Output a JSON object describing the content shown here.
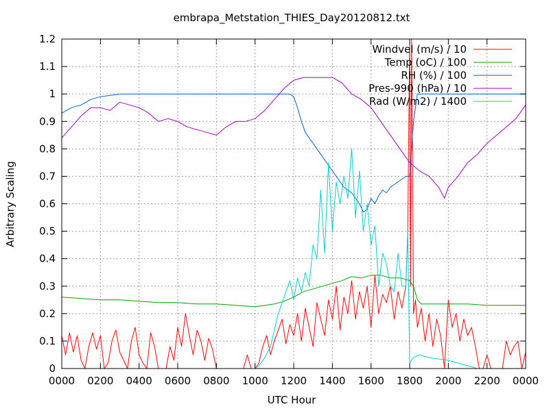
{
  "chart_data": {
    "type": "line",
    "title": "embrapa_Metstation_THIES_Day20120812.txt",
    "xlabel": "UTC Hour",
    "ylabel": "Arbitrary Scaling",
    "xlim": [
      0,
      24
    ],
    "ylim": [
      0,
      1.2
    ],
    "grid": true,
    "legend_position": "top-right",
    "x_ticks": [
      {
        "value": 0,
        "label": "0000"
      },
      {
        "value": 2,
        "label": "0200"
      },
      {
        "value": 4,
        "label": "0400"
      },
      {
        "value": 6,
        "label": "0600"
      },
      {
        "value": 8,
        "label": "0800"
      },
      {
        "value": 10,
        "label": "1000"
      },
      {
        "value": 12,
        "label": "1200"
      },
      {
        "value": 14,
        "label": "1400"
      },
      {
        "value": 16,
        "label": "1600"
      },
      {
        "value": 18,
        "label": "1800"
      },
      {
        "value": 20,
        "label": "2000"
      },
      {
        "value": 22,
        "label": "2200"
      },
      {
        "value": 24,
        "label": "0000"
      }
    ],
    "y_ticks": [
      {
        "value": 0,
        "label": "0"
      },
      {
        "value": 0.1,
        "label": "0.1"
      },
      {
        "value": 0.2,
        "label": "0.2"
      },
      {
        "value": 0.3,
        "label": "0.3"
      },
      {
        "value": 0.4,
        "label": "0.4"
      },
      {
        "value": 0.5,
        "label": "0.5"
      },
      {
        "value": 0.6,
        "label": "0.6"
      },
      {
        "value": 0.7,
        "label": "0.7"
      },
      {
        "value": 0.8,
        "label": "0.8"
      },
      {
        "value": 0.9,
        "label": "0.9"
      },
      {
        "value": 1.0,
        "label": "1"
      },
      {
        "value": 1.1,
        "label": "1.1"
      },
      {
        "value": 1.2,
        "label": "1.2"
      }
    ],
    "series": [
      {
        "name": "Windvel (m/s) / 10",
        "color": "#ff0000",
        "x": [
          0,
          0.2,
          0.4,
          0.6,
          0.8,
          1.0,
          1.2,
          1.4,
          1.6,
          1.8,
          2.0,
          2.2,
          2.4,
          2.6,
          2.8,
          3.0,
          3.2,
          3.4,
          3.6,
          3.8,
          4.0,
          4.2,
          4.4,
          4.6,
          4.8,
          5.0,
          5.2,
          5.4,
          5.6,
          5.8,
          6.0,
          6.2,
          6.4,
          6.6,
          6.8,
          7.0,
          7.2,
          7.4,
          7.6,
          7.8,
          8.0,
          9.4,
          9.6,
          9.8,
          10.0,
          10.2,
          10.4,
          10.6,
          10.8,
          11.0,
          11.2,
          11.4,
          11.6,
          11.8,
          12.0,
          12.2,
          12.4,
          12.6,
          12.8,
          13.0,
          13.2,
          13.4,
          13.6,
          13.8,
          14.0,
          14.2,
          14.4,
          14.6,
          14.8,
          15.0,
          15.2,
          15.4,
          15.6,
          15.8,
          16.0,
          16.2,
          16.4,
          16.6,
          16.8,
          17.0,
          17.2,
          17.4,
          17.6,
          17.8,
          17.9,
          18.0,
          18.05,
          18.1,
          18.15,
          18.2,
          18.3,
          18.4,
          18.6,
          18.8,
          19.0,
          19.2,
          19.4,
          19.6,
          19.8,
          20.0,
          20.2,
          20.4,
          20.6,
          20.8,
          21.0,
          21.2,
          21.4,
          21.6,
          21.8,
          22.0,
          22.2,
          22.4,
          22.6,
          22.8,
          23.0,
          23.2,
          23.4,
          23.6,
          23.8,
          24.0
        ],
        "y": [
          0.12,
          0.05,
          0.13,
          0.06,
          0.12,
          0.03,
          0.0,
          0.08,
          0.13,
          0.07,
          0.12,
          0.0,
          0.02,
          0.1,
          0.14,
          0.06,
          0.03,
          0.0,
          0.1,
          0.15,
          0.05,
          0.02,
          0.0,
          0.13,
          0.08,
          0.0,
          0.0,
          0.0,
          0.08,
          0.03,
          0.15,
          0.08,
          0.2,
          0.12,
          0.05,
          0.14,
          0.1,
          0.03,
          0.11,
          0.07,
          0.0,
          0.0,
          0.05,
          0.0,
          0.0,
          0.02,
          0.08,
          0.12,
          0.05,
          0.1,
          0.14,
          0.18,
          0.09,
          0.16,
          0.12,
          0.2,
          0.1,
          0.22,
          0.15,
          0.08,
          0.24,
          0.18,
          0.12,
          0.25,
          0.18,
          0.3,
          0.14,
          0.26,
          0.2,
          0.32,
          0.18,
          0.28,
          0.22,
          0.3,
          0.15,
          0.34,
          0.2,
          0.27,
          0.24,
          0.3,
          0.18,
          0.28,
          0.22,
          0.3,
          0.5,
          1.2,
          0.3,
          1.2,
          0.8,
          0.2,
          0.25,
          0.15,
          0.22,
          0.1,
          0.2,
          0.08,
          0.18,
          0.12,
          0.0,
          0.25,
          0.15,
          0.2,
          0.1,
          0.18,
          0.12,
          0.15,
          0.08,
          0.0,
          0.0,
          0.05,
          0.0,
          0.0,
          0.0,
          0.0,
          0.1,
          0.05,
          0.08,
          0.1,
          0.0,
          0.06
        ]
      },
      {
        "name": "Temp (oC) / 100",
        "color": "#00a000",
        "x": [
          0,
          1,
          2,
          3,
          4,
          5,
          6,
          7,
          8,
          9,
          10,
          11,
          11.5,
          12,
          12.5,
          13,
          13.5,
          14,
          14.5,
          15,
          15.5,
          16,
          16.5,
          17,
          17.5,
          18,
          18.2,
          18.4,
          18.6,
          19,
          20,
          21,
          22,
          23,
          24
        ],
        "y": [
          0.26,
          0.255,
          0.25,
          0.25,
          0.245,
          0.24,
          0.24,
          0.235,
          0.235,
          0.23,
          0.225,
          0.235,
          0.245,
          0.26,
          0.28,
          0.29,
          0.3,
          0.31,
          0.32,
          0.335,
          0.33,
          0.34,
          0.34,
          0.33,
          0.33,
          0.32,
          0.3,
          0.25,
          0.235,
          0.235,
          0.235,
          0.235,
          0.23,
          0.23,
          0.23
        ]
      },
      {
        "name": "RH (%) / 100",
        "color": "#0060d0",
        "x": [
          0,
          0.5,
          1,
          1.5,
          2,
          2.5,
          3,
          4,
          5,
          6,
          7,
          8,
          9,
          10,
          11,
          11.8,
          12,
          12.2,
          12.4,
          12.6,
          12.8,
          13,
          13.2,
          13.4,
          13.6,
          13.8,
          14,
          14.2,
          14.4,
          14.6,
          14.8,
          15,
          15.2,
          15.4,
          15.6,
          15.8,
          16,
          16.2,
          16.4,
          16.6,
          16.8,
          17,
          17.2,
          17.4,
          17.6,
          17.8,
          18,
          18.2,
          18.4,
          18.6,
          19,
          20,
          21,
          22,
          23,
          24
        ],
        "y": [
          0.93,
          0.95,
          0.96,
          0.98,
          0.99,
          0.995,
          1.0,
          1.0,
          1.0,
          1.0,
          1.0,
          1.0,
          1.0,
          1.0,
          1.0,
          1.0,
          0.99,
          0.95,
          0.9,
          0.86,
          0.84,
          0.82,
          0.8,
          0.78,
          0.76,
          0.74,
          0.72,
          0.7,
          0.68,
          0.66,
          0.65,
          0.64,
          0.62,
          0.6,
          0.57,
          0.58,
          0.62,
          0.6,
          0.63,
          0.65,
          0.64,
          0.66,
          0.67,
          0.68,
          0.69,
          0.7,
          0.7,
          0.9,
          1.0,
          1.0,
          1.0,
          1.0,
          1.0,
          1.0,
          1.0,
          1.0
        ]
      },
      {
        "name": "Pres-990 (hPa) / 10",
        "color": "#a000c0",
        "x": [
          0,
          0.5,
          1,
          1.5,
          2,
          2.5,
          3,
          3.5,
          4,
          4.5,
          5,
          5.5,
          6,
          6.5,
          7,
          7.5,
          8,
          8.5,
          9,
          9.5,
          10,
          10.5,
          11,
          11.5,
          12,
          12.5,
          13,
          13.5,
          14,
          14.5,
          15,
          15.5,
          16,
          16.5,
          17,
          17.5,
          18,
          18.5,
          19,
          19.5,
          19.8,
          20,
          20.5,
          21,
          21.5,
          22,
          22.5,
          23,
          23.5,
          24
        ],
        "y": [
          0.84,
          0.88,
          0.92,
          0.95,
          0.95,
          0.94,
          0.97,
          0.96,
          0.95,
          0.93,
          0.9,
          0.91,
          0.9,
          0.88,
          0.87,
          0.86,
          0.85,
          0.88,
          0.9,
          0.9,
          0.91,
          0.94,
          0.98,
          1.02,
          1.05,
          1.06,
          1.06,
          1.06,
          1.06,
          1.04,
          1.0,
          0.98,
          0.95,
          0.9,
          0.85,
          0.8,
          0.75,
          0.72,
          0.7,
          0.66,
          0.62,
          0.66,
          0.7,
          0.75,
          0.78,
          0.82,
          0.85,
          0.88,
          0.91,
          0.96
        ]
      },
      {
        "name": "Rad (W/m2) / 1400",
        "color": "#00d0d0",
        "x": [
          0,
          10,
          10.2,
          10.5,
          10.8,
          11.0,
          11.2,
          11.4,
          11.6,
          11.8,
          12.0,
          12.2,
          12.4,
          12.6,
          12.8,
          13.0,
          13.2,
          13.4,
          13.6,
          13.8,
          14.0,
          14.2,
          14.4,
          14.6,
          14.8,
          15.0,
          15.2,
          15.4,
          15.6,
          15.8,
          16.0,
          16.2,
          16.4,
          16.6,
          16.8,
          17.0,
          17.2,
          17.4,
          17.6,
          17.8,
          17.9,
          18.0,
          18.2,
          18.5,
          19.0,
          19.5,
          20.0,
          20.5,
          21.0,
          21.5,
          22.0,
          24.0
        ],
        "y": [
          0.0,
          0.0,
          0.01,
          0.04,
          0.08,
          0.14,
          0.2,
          0.24,
          0.28,
          0.32,
          0.25,
          0.33,
          0.28,
          0.35,
          0.3,
          0.45,
          0.4,
          0.65,
          0.42,
          0.75,
          0.5,
          0.68,
          0.6,
          0.7,
          0.62,
          0.8,
          0.55,
          0.72,
          0.5,
          0.6,
          0.45,
          0.52,
          0.3,
          0.42,
          0.38,
          0.3,
          0.28,
          0.42,
          0.3,
          0.3,
          0.5,
          0.02,
          0.04,
          0.05,
          0.04,
          0.035,
          0.03,
          0.02,
          0.01,
          0.0,
          0.0,
          0.0
        ]
      }
    ]
  }
}
